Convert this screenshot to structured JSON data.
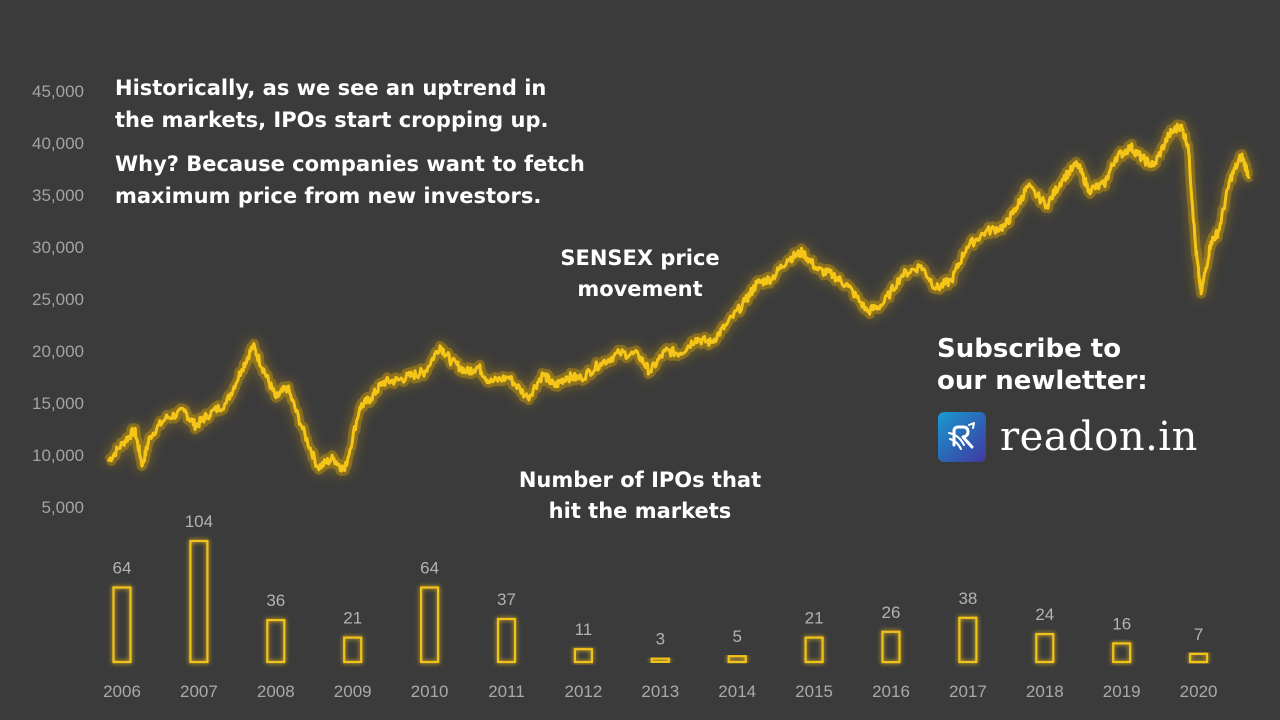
{
  "annotations": {
    "note_line1": "Historically, as we see an uptrend in",
    "note_line2": "the markets, IPOs start cropping up.",
    "why_line1": "Why? Because companies want to fetch",
    "why_line2": "maximum price from new investors.",
    "sensex_line1": "SENSEX price",
    "sensex_line2": "movement",
    "ipo_line1": "Number of IPOs that",
    "ipo_line2": "hit the markets"
  },
  "promo": {
    "subscribe_line1": "Subscribe to",
    "subscribe_line2": "our newletter:",
    "brand": "readon.in",
    "logo_icon": "readon-logo-icon"
  },
  "colors": {
    "background": "#3b3b3b",
    "line": "#f5c518",
    "glow": "#e0a800",
    "bar_stroke": "#f2c21b"
  },
  "chart_data": [
    {
      "type": "line",
      "ylim": [
        0,
        45000
      ],
      "yticks": [
        "5,000",
        "10,000",
        "15,000",
        "20,000",
        "25,000",
        "30,000",
        "35,000",
        "40,000",
        "45,000"
      ],
      "ytick_values": [
        5000,
        10000,
        15000,
        20000,
        25000,
        30000,
        35000,
        40000,
        45000
      ],
      "xlim": [
        2006.0,
        2021.0
      ],
      "x": [
        2006.0,
        2006.2,
        2006.35,
        2006.45,
        2006.55,
        2006.75,
        2007.0,
        2007.15,
        2007.3,
        2007.55,
        2007.75,
        2007.9,
        2008.05,
        2008.2,
        2008.35,
        2008.55,
        2008.75,
        2008.95,
        2009.1,
        2009.3,
        2009.45,
        2009.6,
        2009.8,
        2010.0,
        2010.15,
        2010.35,
        2010.5,
        2010.7,
        2010.85,
        2011.0,
        2011.25,
        2011.5,
        2011.7,
        2011.85,
        2012.0,
        2012.2,
        2012.45,
        2012.7,
        2012.95,
        2013.1,
        2013.3,
        2013.5,
        2013.7,
        2013.9,
        2014.1,
        2014.35,
        2014.5,
        2014.7,
        2014.9,
        2015.1,
        2015.3,
        2015.5,
        2015.7,
        2015.95,
        2016.15,
        2016.4,
        2016.65,
        2016.85,
        2017.05,
        2017.25,
        2017.5,
        2017.75,
        2017.9,
        2018.05,
        2018.3,
        2018.5,
        2018.7,
        2018.85,
        2019.05,
        2019.2,
        2019.4,
        2019.55,
        2019.7,
        2019.9,
        2020.05,
        2020.15,
        2020.25,
        2020.32,
        2020.45,
        2020.55,
        2020.7,
        2020.85,
        2020.95
      ],
      "y": [
        9400,
        11200,
        12400,
        9000,
        11800,
        13500,
        14200,
        12800,
        13800,
        15000,
        18200,
        20500,
        18000,
        15500,
        16500,
        12500,
        8800,
        9700,
        8500,
        14600,
        15500,
        17000,
        17200,
        17700,
        18000,
        20500,
        19000,
        18000,
        18500,
        17000,
        17500,
        15500,
        17800,
        16600,
        17500,
        17400,
        18800,
        19800,
        19600,
        18000,
        20000,
        19800,
        21200,
        20800,
        22500,
        24800,
        26500,
        27000,
        28800,
        29500,
        27800,
        27300,
        26200,
        23800,
        24500,
        27300,
        28200,
        26000,
        26800,
        30000,
        31500,
        32000,
        33800,
        35800,
        34000,
        36500,
        38000,
        35500,
        36000,
        38600,
        39600,
        38500,
        37800,
        40800,
        41700,
        39800,
        29800,
        25500,
        30500,
        31500,
        36500,
        38800,
        36800
      ],
      "series_name": ""
    },
    {
      "type": "bar",
      "categories": [
        "2006",
        "2007",
        "2008",
        "2009",
        "2010",
        "2011",
        "2012",
        "2013",
        "2014",
        "2015",
        "2016",
        "2017",
        "2018",
        "2019",
        "2020"
      ],
      "values": [
        64,
        104,
        36,
        21,
        64,
        37,
        11,
        3,
        5,
        21,
        26,
        38,
        24,
        16,
        7
      ],
      "ylim": [
        0,
        104
      ],
      "show_value_labels": true
    }
  ]
}
